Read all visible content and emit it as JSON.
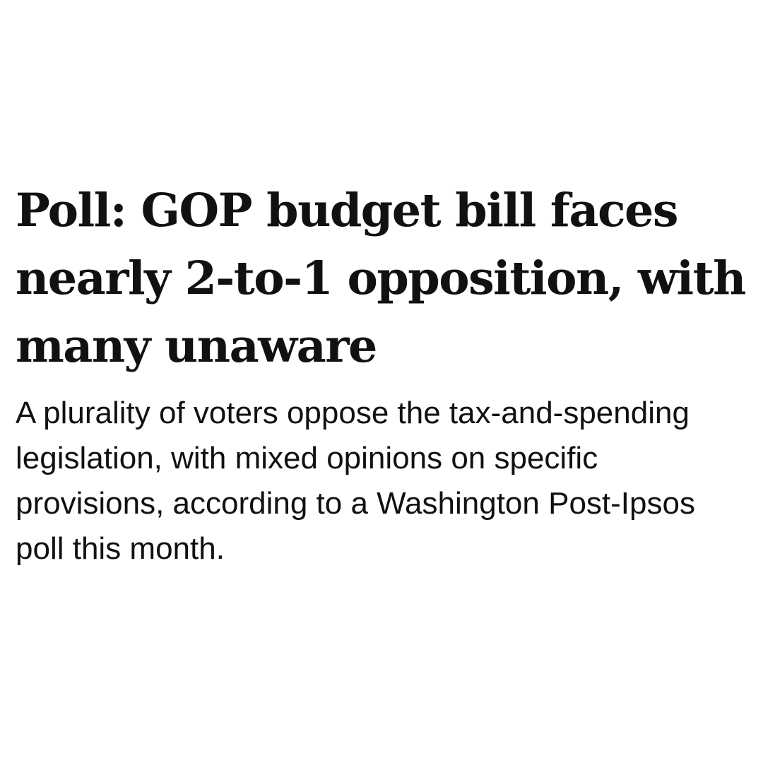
{
  "article": {
    "headline": "Poll: GOP budget bill faces nearly 2-to-1 opposition, with many unaware",
    "dek": "A plurality of voters oppose the tax-and-spending legislation, with mixed opinions on specific provisions, according to a Washington Post-Ipsos poll this month."
  },
  "colors": {
    "background": "#ffffff",
    "text": "#111111"
  }
}
